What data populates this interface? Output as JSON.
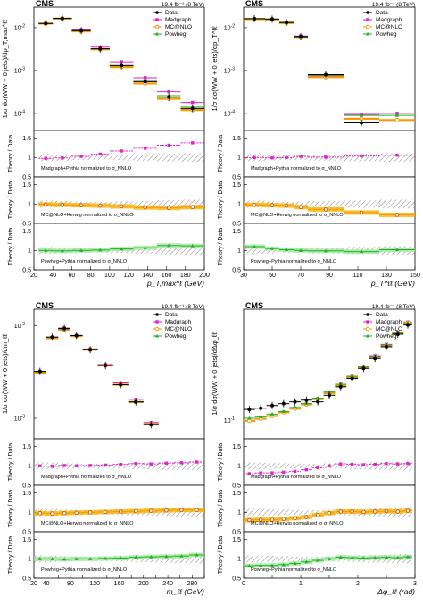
{
  "colors": {
    "data": "#000000",
    "madgraph": "#e020c8",
    "mcnlo": "#f59a00",
    "mcnlo_band": "#f7b200",
    "powheg": "#22b022",
    "powheg_band": "#a0e8a0",
    "hatch": "#555555"
  },
  "legend": {
    "data": "Data",
    "madgraph": "Madgraph",
    "mcnlo": "MC@NLO",
    "powheg": "Powheg"
  },
  "ratio_notes": {
    "madgraph": "Madgraph+Pythia normalized to σ_NNLO",
    "mcnlo": "MC@NLO+Herwig normalized to σ_NNLO",
    "powheg": "Powheg+Pythia normalized to σ_NNLO"
  },
  "chart_data": [
    {
      "type": "scatter",
      "experiment": "CMS",
      "lumi": "19.4 fb⁻¹ (8 TeV)",
      "ylabel": "1/σ dσ(WW + 0 jets)/dp_T,max^ℓℓ",
      "xlabel": "p_T,max^ℓ (GeV)",
      "ratio_ylabel": "Theory / Data",
      "log_y": true,
      "xlim": [
        20,
        200
      ],
      "ylim": [
        4e-05,
        0.03
      ],
      "ratio_ylim": [
        0.5,
        1.7
      ],
      "bins": [
        [
          25,
          40
        ],
        [
          40,
          60
        ],
        [
          60,
          80
        ],
        [
          80,
          100
        ],
        [
          100,
          125
        ],
        [
          125,
          150
        ],
        [
          150,
          175
        ],
        [
          175,
          200
        ]
      ],
      "data": [
        0.0125,
        0.0165,
        0.0085,
        0.0032,
        0.0013,
        0.00055,
        0.00024,
        0.00013
      ],
      "madgraph": [
        0.0123,
        0.0163,
        0.0089,
        0.0035,
        0.0016,
        0.00068,
        0.00032,
        0.00018
      ],
      "mcnlo": [
        0.0124,
        0.0162,
        0.0082,
        0.0031,
        0.0012,
        0.0005,
        0.00022,
        0.00012
      ],
      "powheg": [
        0.0125,
        0.0164,
        0.0084,
        0.0032,
        0.0013,
        0.00056,
        0.00026,
        0.00014
      ],
      "ratio_madgraph": [
        0.98,
        0.99,
        1.03,
        1.09,
        1.17,
        1.24,
        1.32,
        1.38
      ],
      "ratio_mcnlo": [
        0.99,
        0.98,
        0.97,
        0.96,
        0.94,
        0.91,
        0.9,
        0.92
      ],
      "ratio_powheg": [
        1.0,
        0.99,
        1.0,
        1.01,
        1.04,
        1.07,
        1.13,
        1.12
      ]
    },
    {
      "type": "scatter",
      "experiment": "CMS",
      "lumi": "19.4 fb⁻¹ (8 TeV)",
      "ylabel": "1/σ dσ(WW + 0 jets)/dp_T^ℓℓ",
      "xlabel": "p_T^ℓℓ (GeV)",
      "ratio_ylabel": "Theory / Data",
      "log_y": true,
      "xlim": [
        30,
        150
      ],
      "ylim": [
        4e-05,
        0.03
      ],
      "ratio_ylim": [
        0.5,
        1.7
      ],
      "bins": [
        [
          30,
          45
        ],
        [
          45,
          55
        ],
        [
          55,
          65
        ],
        [
          65,
          75
        ],
        [
          75,
          100
        ],
        [
          100,
          125
        ],
        [
          125,
          150
        ]
      ],
      "data": [
        0.0162,
        0.0158,
        0.0132,
        0.0062,
        0.0008,
        6e-05,
        3e-05
      ],
      "madgraph": [
        0.016,
        0.0156,
        0.0133,
        0.0064,
        0.00075,
        9.5e-05,
        0.0001
      ],
      "mcnlo": [
        0.0158,
        0.0155,
        0.0128,
        0.0058,
        0.0007,
        7.5e-05,
        7e-05
      ],
      "powheg": [
        0.0161,
        0.0157,
        0.013,
        0.006,
        0.00078,
        9e-05,
        9e-05
      ],
      "ratio_madgraph": [
        1.0,
        0.99,
        1.0,
        1.03,
        1.01,
        1.04,
        1.06
      ],
      "ratio_mcnlo": [
        0.98,
        0.97,
        0.96,
        0.92,
        0.86,
        0.78,
        0.72
      ],
      "ratio_powheg": [
        1.1,
        1.05,
        1.02,
        1.0,
        0.99,
        0.97,
        1.02
      ]
    },
    {
      "type": "scatter",
      "experiment": "CMS",
      "lumi": "19.4 fb⁻¹ (8 TeV)",
      "ylabel": "1/σ dσ(WW + 0 jets)/dm_ℓℓ",
      "xlabel": "m_ℓℓ (GeV)",
      "ratio_ylabel": "Theory / Data",
      "log_y": true,
      "xlim": [
        20,
        300
      ],
      "ylim": [
        0.0006,
        0.015
      ],
      "ratio_ylim": [
        0.5,
        1.7
      ],
      "bins": [
        [
          20,
          40
        ],
        [
          40,
          60
        ],
        [
          60,
          80
        ],
        [
          80,
          100
        ],
        [
          100,
          125
        ],
        [
          125,
          150
        ],
        [
          150,
          175
        ],
        [
          175,
          200
        ],
        [
          200,
          225
        ],
        [
          225,
          250
        ],
        [
          250,
          275
        ],
        [
          275,
          300
        ]
      ],
      "data": [
        0.0032,
        0.0075,
        0.0093,
        0.0078,
        0.0055,
        0.0037,
        0.0023,
        0.0015,
        0.00085,
        0.00055,
        0.00035,
        0.00022
      ],
      "madgraph": [
        0.0032,
        0.0074,
        0.0094,
        0.0078,
        0.0056,
        0.0038,
        0.0024,
        0.0016,
        0.0009,
        0.00058,
        0.00037,
        0.00025
      ],
      "mcnlo": [
        0.0031,
        0.0073,
        0.009,
        0.0077,
        0.0055,
        0.0037,
        0.0023,
        0.0015,
        0.00087,
        0.00056,
        0.00036,
        0.00023
      ],
      "powheg": [
        0.0032,
        0.0075,
        0.0092,
        0.0078,
        0.0055,
        0.0037,
        0.0023,
        0.0015,
        0.00086,
        0.00056,
        0.00036,
        0.00023
      ],
      "ratio_madgraph": [
        1.0,
        0.99,
        1.01,
        1.0,
        1.01,
        1.02,
        1.04,
        1.06,
        1.05,
        1.07,
        1.08,
        1.1
      ],
      "ratio_mcnlo": [
        0.98,
        0.97,
        0.98,
        0.99,
        1.0,
        1.01,
        1.02,
        1.03,
        1.04,
        1.05,
        1.06,
        1.06
      ],
      "ratio_powheg": [
        1.0,
        1.0,
        0.99,
        1.0,
        1.0,
        1.01,
        1.02,
        1.04,
        1.05,
        1.06,
        1.07,
        1.1
      ]
    },
    {
      "type": "scatter",
      "experiment": "CMS",
      "lumi": "19.4 fb⁻¹ (8 TeV)",
      "ylabel": "1/σ dσ(WW + 0 jets)/dΔφ_ℓℓ",
      "xlabel": "Δφ_ℓℓ (rad)",
      "ratio_ylabel": "Theory / Data",
      "log_y": true,
      "xlim": [
        0,
        3
      ],
      "ylim": [
        0.07,
        0.9
      ],
      "ratio_ylim": [
        0.5,
        1.7
      ],
      "bins": [
        [
          0,
          0.2
        ],
        [
          0.2,
          0.4
        ],
        [
          0.4,
          0.6
        ],
        [
          0.6,
          0.8
        ],
        [
          0.8,
          1.0
        ],
        [
          1.0,
          1.2
        ],
        [
          1.2,
          1.4
        ],
        [
          1.4,
          1.6
        ],
        [
          1.6,
          1.8
        ],
        [
          1.8,
          2.0
        ],
        [
          2.0,
          2.2
        ],
        [
          2.2,
          2.4
        ],
        [
          2.4,
          2.6
        ],
        [
          2.6,
          2.8
        ],
        [
          2.8,
          2.95
        ]
      ],
      "data": [
        0.125,
        0.128,
        0.135,
        0.14,
        0.145,
        0.15,
        0.145,
        0.165,
        0.195,
        0.23,
        0.28,
        0.34,
        0.43,
        0.55,
        0.66
      ],
      "madgraph": [
        0.1,
        0.105,
        0.11,
        0.118,
        0.128,
        0.14,
        0.155,
        0.175,
        0.205,
        0.24,
        0.29,
        0.36,
        0.45,
        0.57,
        0.7
      ],
      "mcnlo": [
        0.1,
        0.104,
        0.11,
        0.118,
        0.127,
        0.138,
        0.153,
        0.172,
        0.2,
        0.235,
        0.285,
        0.35,
        0.44,
        0.56,
        0.69
      ],
      "powheg": [
        0.105,
        0.108,
        0.114,
        0.12,
        0.13,
        0.14,
        0.156,
        0.176,
        0.205,
        0.24,
        0.29,
        0.355,
        0.445,
        0.56,
        0.68
      ],
      "ratio_madgraph": [
        0.8,
        0.82,
        0.82,
        0.84,
        0.86,
        0.9,
        0.95,
        1.0,
        1.05,
        1.04,
        1.03,
        1.04,
        1.06,
        1.05,
        1.06
      ],
      "ratio_mcnlo": [
        0.8,
        0.81,
        0.81,
        0.83,
        0.85,
        0.88,
        0.93,
        0.98,
        1.02,
        1.02,
        1.01,
        1.02,
        1.03,
        1.02,
        1.04
      ],
      "ratio_powheg": [
        0.82,
        0.83,
        0.83,
        0.85,
        0.88,
        0.92,
        0.96,
        1.0,
        1.04,
        1.03,
        1.02,
        1.03,
        1.04,
        1.03,
        1.05
      ]
    }
  ]
}
